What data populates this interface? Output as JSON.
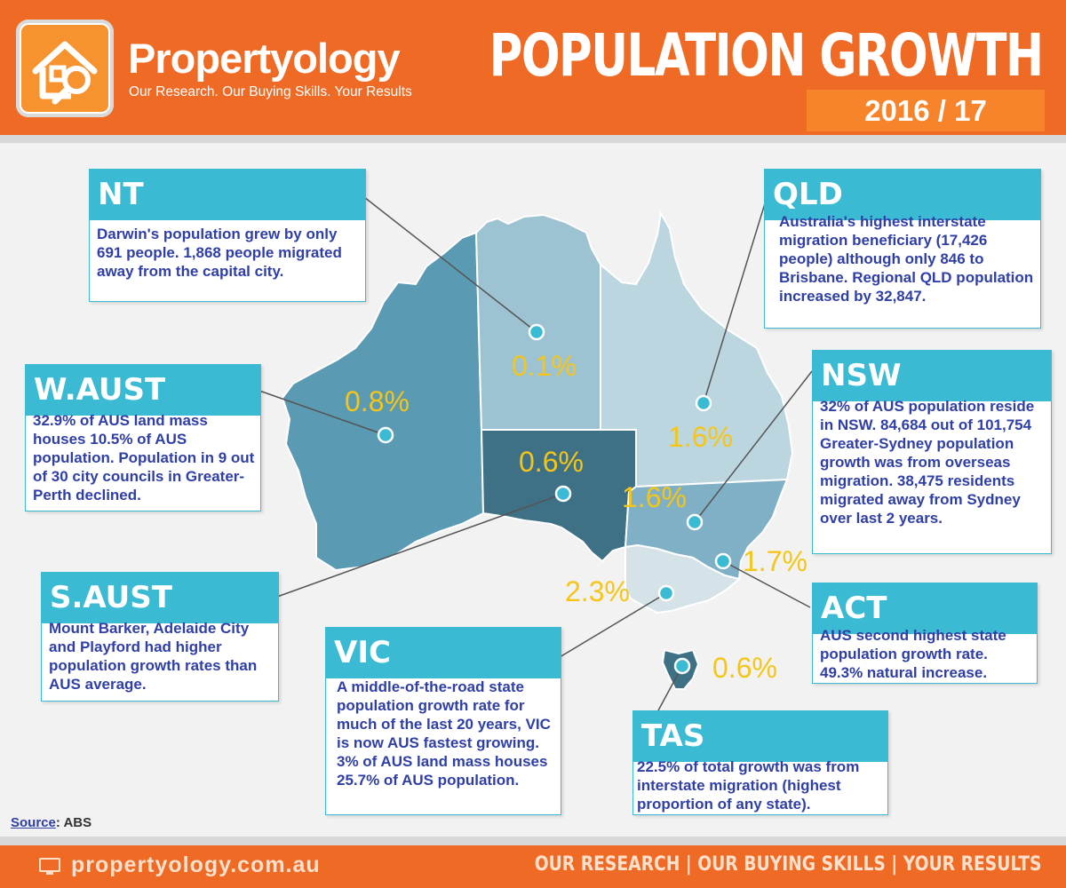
{
  "header": {
    "brand": "Propertyology",
    "tagline": "Our Research. Our Buying Skills. Your Results",
    "title": "POPULATION GROWTH",
    "year": "2016 / 17"
  },
  "map_data": {
    "title": "POPULATION GROWTH",
    "period": "2016 / 17",
    "regions": [
      {
        "code": "NT",
        "growth": "0.1%",
        "text": "Darwin's population grew by only 691 people. 1,868 people migrated away from the capital city.",
        "color": "#9dc2d2"
      },
      {
        "code": "QLD",
        "growth": "1.6%",
        "text": "Australia's highest interstate migration beneficiary (17,426 people) although only 846 to Brisbane. Regional QLD population increased by 32,847.",
        "color": "#bcd6e0"
      },
      {
        "code": "W.AUST",
        "growth": "0.8%",
        "text": "32.9% of AUS land mass houses 10.5% of AUS population. Population in 9 out of 30 city councils in Greater-Perth declined.",
        "color": "#5a9ab2"
      },
      {
        "code": "NSW",
        "growth": "1.6%",
        "text": "32% of AUS population reside in NSW. 84,684 out of 101,754 Greater-Sydney population growth was from overseas migration. 38,475 residents migrated away from Sydney over last 2 years.",
        "color": "#7fb0c6"
      },
      {
        "code": "S.AUST",
        "growth": "0.6%",
        "text": "Mount Barker, Adelaide City and Playford had higher population growth rates than AUS average.",
        "color": "#3f7186"
      },
      {
        "code": "ACT",
        "growth": "1.7%",
        "text": "AUS second highest state population growth rate. 49.3% natural increase.",
        "color": "#7fb0c6"
      },
      {
        "code": "VIC",
        "growth": "2.3%",
        "text": "A middle-of-the-road state population growth rate for much of the last 20 years, VIC is now AUS fastest growing. 3% of AUS land mass houses 25.7% of AUS population.",
        "color": "#d5e2e8"
      },
      {
        "code": "TAS",
        "growth": "0.6%",
        "text": "22.5% of total growth was from interstate migration (highest proportion of any state).",
        "color": "#3f7186"
      }
    ]
  },
  "source": {
    "label": "Source",
    "value": ": ABS"
  },
  "footer": {
    "url": "propertyology.com.au",
    "slogan": "OUR RESEARCH | OUR BUYING SKILLS | YOUR RESULTS"
  },
  "colors": {
    "accent": "#ef6a24",
    "card": "#3bbad3",
    "pct": "#f5c518",
    "text": "#2f3fa6"
  }
}
